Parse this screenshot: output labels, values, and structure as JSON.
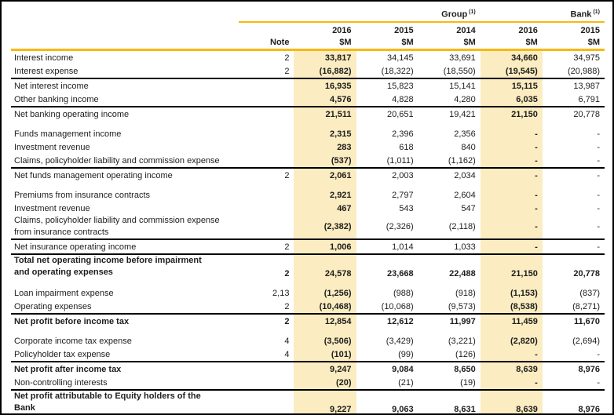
{
  "header": {
    "group_label": "Group",
    "bank_label": "Bank",
    "footnote_marker": "(1)",
    "note_label": "Note",
    "years": {
      "group": [
        "2016",
        "2015",
        "2014"
      ],
      "bank": [
        "2016",
        "2015"
      ]
    },
    "unit": "$M"
  },
  "colors": {
    "gold_line": "#F8B811",
    "highlight_column": "#FBECC2",
    "separator": "#000000",
    "text": "#1D1D1B"
  },
  "highlight_value_columns": [
    0,
    3
  ],
  "rows": [
    {
      "label": "Interest income",
      "note": "2",
      "values": [
        "33,817",
        "34,145",
        "33,691",
        "34,660",
        "34,975"
      ]
    },
    {
      "label": "Interest expense",
      "note": "2",
      "values": [
        "(16,882)",
        "(18,322)",
        "(18,550)",
        "(19,545)",
        "(20,988)"
      ],
      "sep": true
    },
    {
      "label": "Net interest income",
      "note": "",
      "values": [
        "16,935",
        "15,823",
        "15,141",
        "15,115",
        "13,987"
      ]
    },
    {
      "label": "Other banking income",
      "note": "",
      "values": [
        "4,576",
        "4,828",
        "4,280",
        "6,035",
        "6,791"
      ],
      "sep": true
    },
    {
      "label": "Net banking operating income",
      "note": "",
      "values": [
        "21,511",
        "20,651",
        "19,421",
        "21,150",
        "20,778"
      ]
    },
    {
      "type": "gap"
    },
    {
      "label": "Funds management income",
      "note": "",
      "values": [
        "2,315",
        "2,396",
        "2,356",
        "-",
        "-"
      ]
    },
    {
      "label": "Investment revenue",
      "note": "",
      "values": [
        "283",
        "618",
        "840",
        "-",
        "-"
      ]
    },
    {
      "label": "Claims, policyholder liability and commission expense",
      "note": "",
      "values": [
        "(537)",
        "(1,011)",
        "(1,162)",
        "-",
        "-"
      ],
      "sep": true
    },
    {
      "label": "Net funds management operating income",
      "note": "2",
      "values": [
        "2,061",
        "2,003",
        "2,034",
        "-",
        "-"
      ]
    },
    {
      "type": "gap"
    },
    {
      "label": "Premiums from insurance contracts",
      "note": "",
      "values": [
        "2,921",
        "2,797",
        "2,604",
        "-",
        "-"
      ]
    },
    {
      "label": "Investment revenue",
      "note": "",
      "values": [
        "467",
        "543",
        "547",
        "-",
        "-"
      ]
    },
    {
      "label": "Claims, policyholder liability and commission expense",
      "label2": "from insurance contracts",
      "note": "",
      "values": [
        "(2,382)",
        "(2,326)",
        "(2,118)",
        "-",
        "-"
      ],
      "sep": true
    },
    {
      "label": "Net insurance operating income",
      "note": "2",
      "values": [
        "1,006",
        "1,014",
        "1,033",
        "-",
        "-"
      ],
      "sep": true
    },
    {
      "label": "Total net operating income before impairment",
      "label2": "and operating expenses",
      "note": "2",
      "values": [
        "24,578",
        "23,668",
        "22,488",
        "21,150",
        "20,778"
      ],
      "bold": true,
      "valign": "bottom"
    },
    {
      "type": "gap"
    },
    {
      "label": "Loan impairment expense",
      "note": "2,13",
      "values": [
        "(1,256)",
        "(988)",
        "(918)",
        "(1,153)",
        "(837)"
      ]
    },
    {
      "label": "Operating expenses",
      "note": "2",
      "values": [
        "(10,468)",
        "(10,068)",
        "(9,573)",
        "(8,538)",
        "(8,271)"
      ],
      "sep": true
    },
    {
      "label": "Net profit before income tax",
      "note": "2",
      "values": [
        "12,854",
        "12,612",
        "11,997",
        "11,459",
        "11,670"
      ],
      "bold": true
    },
    {
      "type": "gap"
    },
    {
      "label": "Corporate income tax expense",
      "note": "4",
      "values": [
        "(3,506)",
        "(3,429)",
        "(3,221)",
        "(2,820)",
        "(2,694)"
      ]
    },
    {
      "label": "Policyholder tax expense",
      "note": "4",
      "values": [
        "(101)",
        "(99)",
        "(126)",
        "-",
        "-"
      ],
      "sep": true
    },
    {
      "label": "Net profit after income tax",
      "note": "",
      "values": [
        "9,247",
        "9,084",
        "8,650",
        "8,639",
        "8,976"
      ],
      "bold": true
    },
    {
      "label": "Non-controlling interests",
      "note": "",
      "values": [
        "(20)",
        "(21)",
        "(19)",
        "-",
        "-"
      ],
      "sep": true
    },
    {
      "label": "Net profit attributable to Equity holders of the",
      "label2": "Bank",
      "note": "",
      "values": [
        "9,227",
        "9,063",
        "8,631",
        "8,639",
        "8,976"
      ],
      "bold": true,
      "valign": "bottom",
      "sep": true
    }
  ]
}
